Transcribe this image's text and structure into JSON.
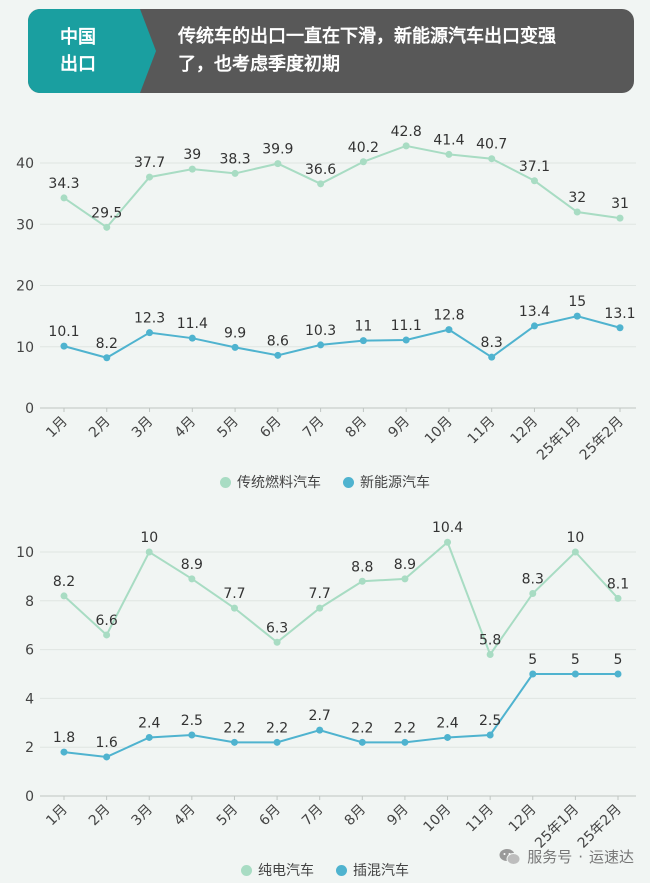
{
  "header": {
    "tag_line1": "中国",
    "tag_line2": "出口",
    "title_line1": "传统车的出口一直在下滑，新能源汽车出口变强",
    "title_line2": "了，也考虑季度初期"
  },
  "watermark": {
    "dot": "·",
    "account": "服务号",
    "name": "运速达"
  },
  "chart_data": [
    {
      "type": "line",
      "categories": [
        "1月",
        "2月",
        "3月",
        "4月",
        "5月",
        "6月",
        "7月",
        "8月",
        "9月",
        "10月",
        "11月",
        "12月",
        "25年1月",
        "25年2月"
      ],
      "ylim": [
        0,
        45
      ],
      "yticks": [
        0,
        10,
        20,
        30,
        40
      ],
      "grid": true,
      "legend_position": "bottom",
      "series": [
        {
          "name": "传统燃料汽车",
          "color": "#a8dcc3",
          "values": [
            34.3,
            29.5,
            37.7,
            39,
            38.3,
            39.9,
            36.6,
            40.2,
            42.8,
            41.4,
            40.7,
            37.1,
            32,
            31
          ]
        },
        {
          "name": "新能源汽车",
          "color": "#4fb3cf",
          "values": [
            10.1,
            8.2,
            12.3,
            11.4,
            9.9,
            8.6,
            10.3,
            11,
            11.1,
            12.8,
            8.3,
            13.4,
            15,
            13.1
          ]
        }
      ]
    },
    {
      "type": "line",
      "categories": [
        "1月",
        "2月",
        "3月",
        "4月",
        "5月",
        "6月",
        "7月",
        "8月",
        "9月",
        "10月",
        "11月",
        "12月",
        "25年1月",
        "25年2月"
      ],
      "ylim": [
        0,
        11
      ],
      "yticks": [
        0,
        2,
        4,
        6,
        8,
        10
      ],
      "grid": true,
      "legend_position": "bottom",
      "series": [
        {
          "name": "纯电汽车",
          "color": "#a8dcc3",
          "values": [
            8.2,
            6.6,
            10,
            8.9,
            7.7,
            6.3,
            7.7,
            8.8,
            8.9,
            10.4,
            5.8,
            8.3,
            10,
            8.1
          ]
        },
        {
          "name": "插混汽车",
          "color": "#4fb3cf",
          "values": [
            1.8,
            1.6,
            2.4,
            2.5,
            2.2,
            2.2,
            2.7,
            2.2,
            2.2,
            2.4,
            2.5,
            5,
            5,
            5
          ]
        }
      ]
    }
  ]
}
